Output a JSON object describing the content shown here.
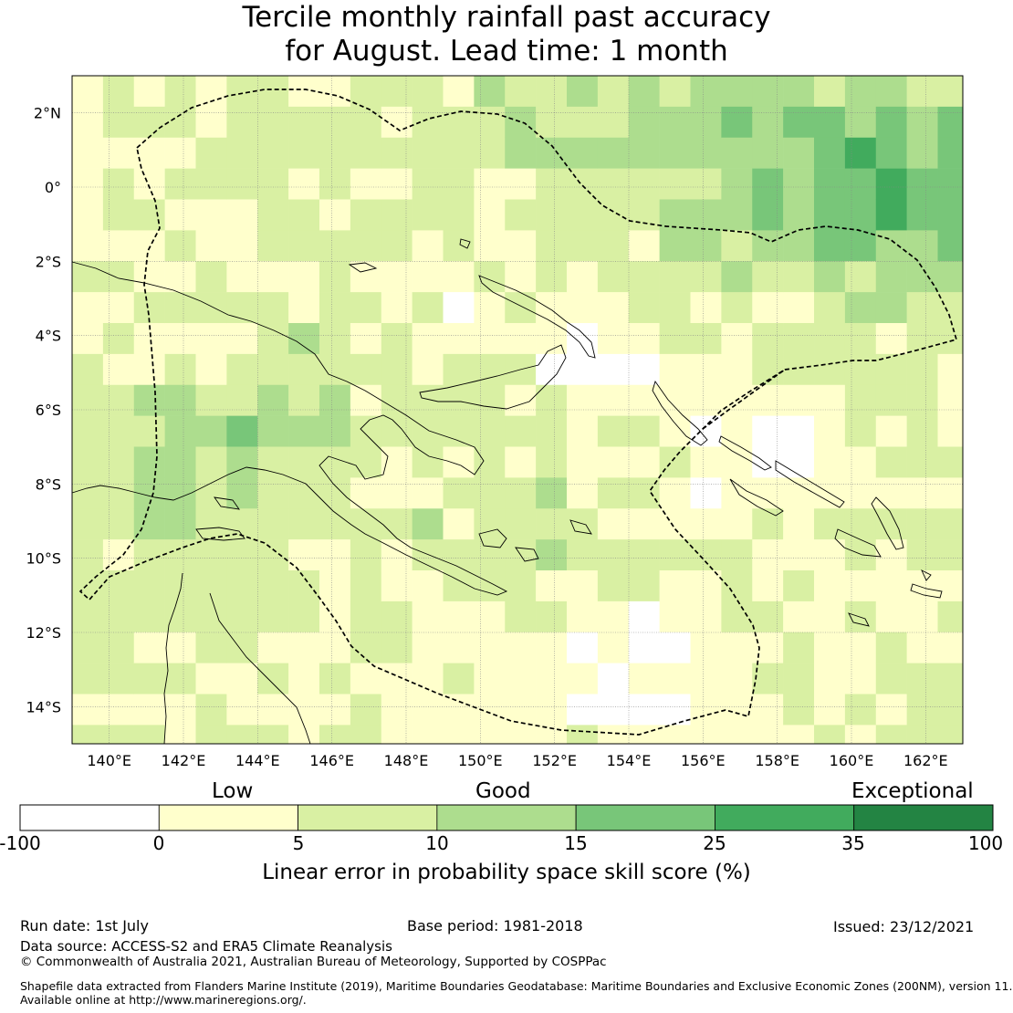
{
  "title": {
    "line1": "Tercile monthly rainfall past accuracy",
    "line2": "for August. Lead time: 1 month"
  },
  "map": {
    "lon_ticks": [
      "140°E",
      "142°E",
      "144°E",
      "146°E",
      "148°E",
      "150°E",
      "152°E",
      "154°E",
      "156°E",
      "158°E",
      "160°E",
      "162°E"
    ],
    "lat_ticks": [
      "2°N",
      "0°",
      "2°S",
      "4°S",
      "6°S",
      "8°S",
      "10°S",
      "12°S",
      "14°S"
    ],
    "lon_range": [
      139,
      163
    ],
    "lat_range": [
      -15,
      3
    ],
    "cell_deg": 0.833,
    "grid": true
  },
  "colorbar": {
    "categories": [
      "Low",
      "Good",
      "Exceptional"
    ],
    "ticks": [
      "-100",
      "0",
      "5",
      "10",
      "15",
      "25",
      "35",
      "100"
    ],
    "colors": [
      "#ffffff",
      "#ffffcc",
      "#d9f0a3",
      "#addd8e",
      "#78c679",
      "#41ab5d",
      "#238443"
    ],
    "label": "Linear error in probability space skill score (%)"
  },
  "footer": {
    "run_date": "Run date: 1st July",
    "base_period": "Base period: 1981-2018",
    "issued": "Issued: 23/12/2021",
    "data_source": "Data source: ACCESS-S2 and ERA5 Climate Reanalysis",
    "copyright": "© Commonwealth of Australia 2021, Australian Bureau of Meteorology, Supported by COSPPac",
    "shapefile_line1": "Shapefile data extracted from Flanders Marine Institute (2019), Maritime Boundaries Geodatabase: Maritime Boundaries and Exclusive Economic Zones (200NM), version 11.",
    "shapefile_line2": "Available online at http://www.marineregions.org/."
  }
}
